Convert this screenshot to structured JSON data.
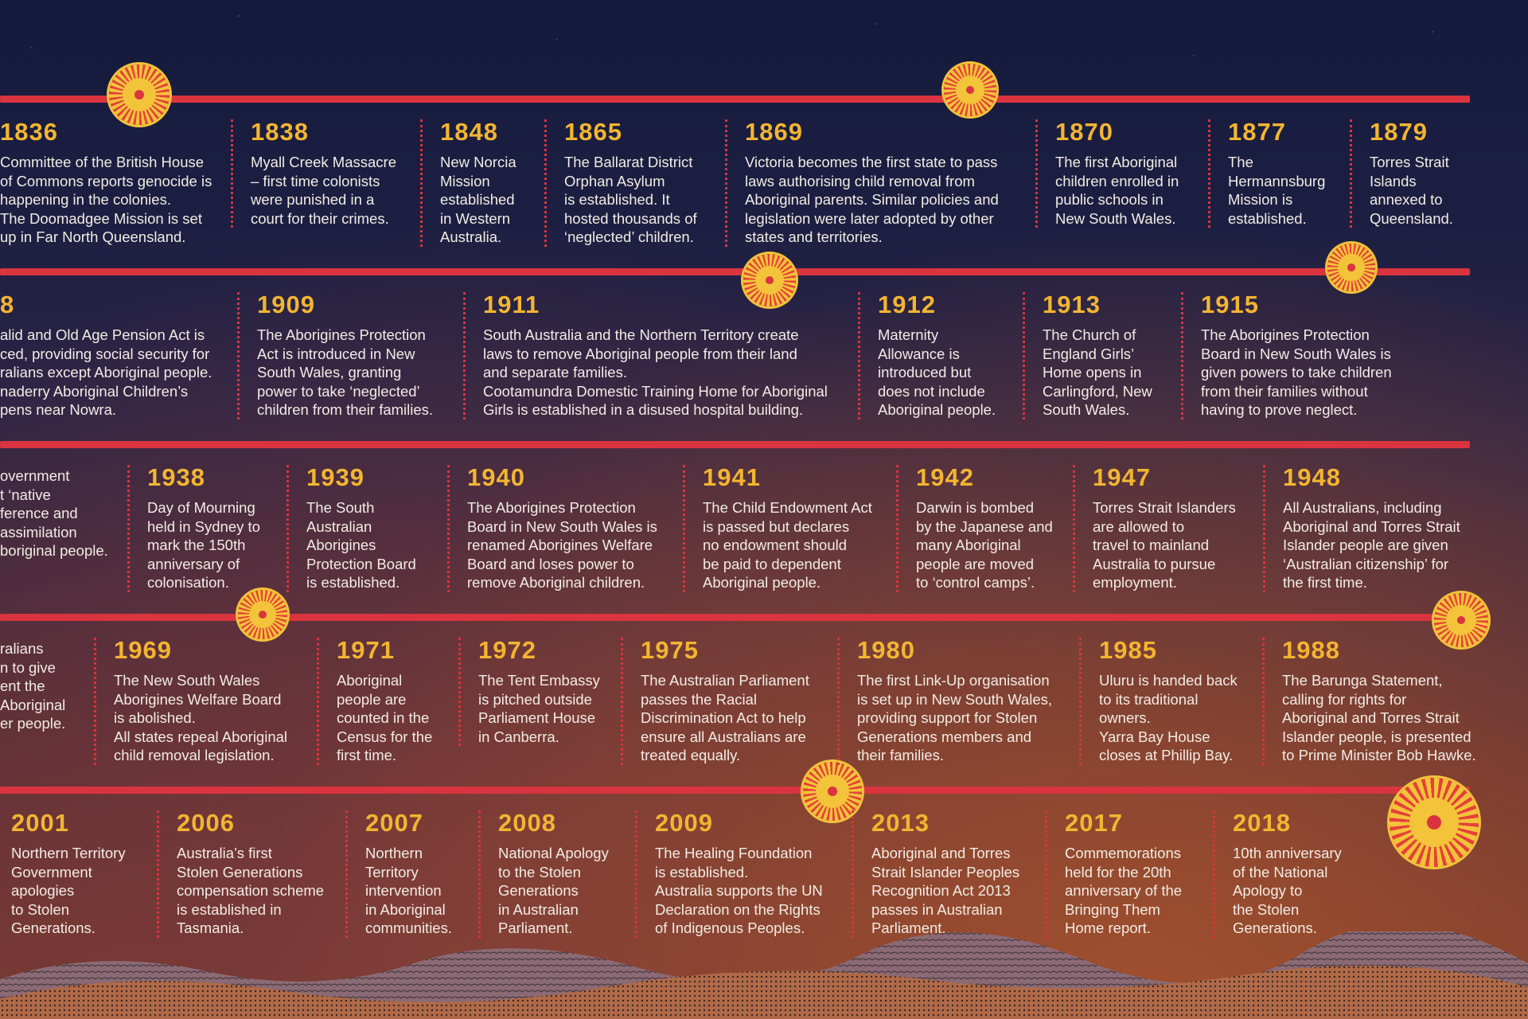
{
  "rows": [
    {
      "events": [
        {
          "year": "1836",
          "text": "Committee of the British House\nof Commons reports genocide is\nhappening in the colonies.\nThe Doomadgee Mission is set\nup in Far North Queensland."
        },
        {
          "year": "1838",
          "text": "Myall Creek Massacre\n– first time colonists\nwere punished in a\ncourt for their crimes."
        },
        {
          "year": "1848",
          "text": "New Norcia\nMission\nestablished\nin Western\nAustralia."
        },
        {
          "year": "1865",
          "text": "The Ballarat District\nOrphan Asylum\nis established. It\nhosted thousands of\n‘neglected’ children."
        },
        {
          "year": "1869",
          "text": "Victoria becomes the first state to pass\nlaws authorising child removal from\nAboriginal parents. Similar policies and\nlegislation were later adopted by other\nstates and territories."
        },
        {
          "year": "1870",
          "text": "The first Aboriginal\nchildren enrolled in\npublic schools in\nNew South Wales."
        },
        {
          "year": "1877",
          "text": "The\nHermannsburg\nMission is\nestablished."
        },
        {
          "year": "1879",
          "text": "Torres Strait\nIslands\nannexed to\nQueensland."
        }
      ]
    },
    {
      "events": [
        {
          "year": "8",
          "text": "alid and Old Age Pension Act is\nced, providing social security for\nralians except Aboriginal people.\nnaderry Aboriginal Children’s\npens near Nowra."
        },
        {
          "year": "1909",
          "text": "The Aborigines Protection\nAct is introduced in New\nSouth Wales, granting\npower to take ‘neglected’\nchildren from their families."
        },
        {
          "year": "1911",
          "text": "South Australia and the Northern Territory create\nlaws to remove Aboriginal people from their land\nand separate families.\nCootamundra Domestic Training Home for Aboriginal\nGirls is established in a disused hospital building."
        },
        {
          "year": "1912",
          "text": "Maternity\nAllowance is\nintroduced but\ndoes not include\nAboriginal people."
        },
        {
          "year": "1913",
          "text": "The Church of\nEngland Girls’\nHome opens in\nCarlingford, New\nSouth Wales."
        },
        {
          "year": "1915",
          "text": "The Aborigines Protection\nBoard in New South Wales is\ngiven powers to take children\nfrom their families without\nhaving to prove neglect."
        }
      ]
    },
    {
      "events": [
        {
          "year": "",
          "text": "overnment\nt ‘native\nference and\n assimilation\nboriginal people."
        },
        {
          "year": "1938",
          "text": "Day of Mourning\nheld in Sydney to\nmark the 150th\nanniversary of\ncolonisation."
        },
        {
          "year": "1939",
          "text": "The South\nAustralian\nAborigines\nProtection Board\nis established."
        },
        {
          "year": "1940",
          "text": "The Aborigines Protection\nBoard in New South Wales is\nrenamed Aborigines Welfare\nBoard and loses power to\nremove Aboriginal children."
        },
        {
          "year": "1941",
          "text": "The Child Endowment Act\nis passed but declares\nno endowment should\nbe paid to dependent\nAboriginal people."
        },
        {
          "year": "1942",
          "text": "Darwin is bombed\nby the Japanese and\nmany Aboriginal\npeople are moved\nto ‘control camps’."
        },
        {
          "year": "1947",
          "text": "Torres Strait Islanders\nare allowed to\ntravel to mainland\nAustralia to pursue\nemployment."
        },
        {
          "year": "1948",
          "text": "All Australians, including\nAboriginal and Torres Strait\nIslander people are given\n‘Australian citizenship’ for\nthe first time."
        }
      ]
    },
    {
      "events": [
        {
          "year": "",
          "text": "ralians\nn to give\nent the\n Aboriginal\ner people."
        },
        {
          "year": "1969",
          "text": "The New South Wales\nAborigines Welfare Board\nis abolished.\nAll states repeal Aboriginal\nchild removal legislation."
        },
        {
          "year": "1971",
          "text": "Aboriginal\npeople are\ncounted in the\nCensus for the\nfirst time."
        },
        {
          "year": "1972",
          "text": "The Tent Embassy\nis pitched outside\nParliament House\nin Canberra."
        },
        {
          "year": "1975",
          "text": "The Australian Parliament\npasses the Racial\nDiscrimination Act to help\nensure all Australians are\ntreated equally."
        },
        {
          "year": "1980",
          "text": "The first Link-Up organisation\nis set up in New South Wales,\nproviding support for Stolen\nGenerations members and\ntheir families."
        },
        {
          "year": "1985",
          "text": "Uluru is handed back\nto its traditional\nowners.\nYarra Bay House\ncloses at Phillip Bay."
        },
        {
          "year": "1988",
          "text": "The Barunga Statement,\ncalling for rights for\nAboriginal and Torres Strait\nIslander people, is presented\nto Prime Minister Bob Hawke."
        }
      ]
    },
    {
      "events": [
        {
          "year": "2001",
          "text": "Northern Territory\nGovernment\napologies\nto Stolen\nGenerations."
        },
        {
          "year": "2006",
          "text": "Australia’s first\nStolen Generations\ncompensation scheme\nis established in\nTasmania."
        },
        {
          "year": "2007",
          "text": "Northern\nTerritory\nintervention\nin Aboriginal\ncommunities."
        },
        {
          "year": "2008",
          "text": "National Apology\nto the Stolen\nGenerations\nin Australian\nParliament."
        },
        {
          "year": "2009",
          "text": "The Healing Foundation\nis established.\nAustralia supports the UN\nDeclaration on the Rights\nof Indigenous Peoples."
        },
        {
          "year": "2013",
          "text": "Aboriginal and Torres\nStrait Islander Peoples\nRecognition Act 2013\npasses in Australian\nParliament."
        },
        {
          "year": "2017",
          "text": "Commemorations\nheld for the 20th\nanniversary of the\nBringing Them\nHome report."
        },
        {
          "year": "2018",
          "text": "10th anniversary\nof the National\nApology to\nthe Stolen\nGenerations."
        }
      ]
    }
  ]
}
